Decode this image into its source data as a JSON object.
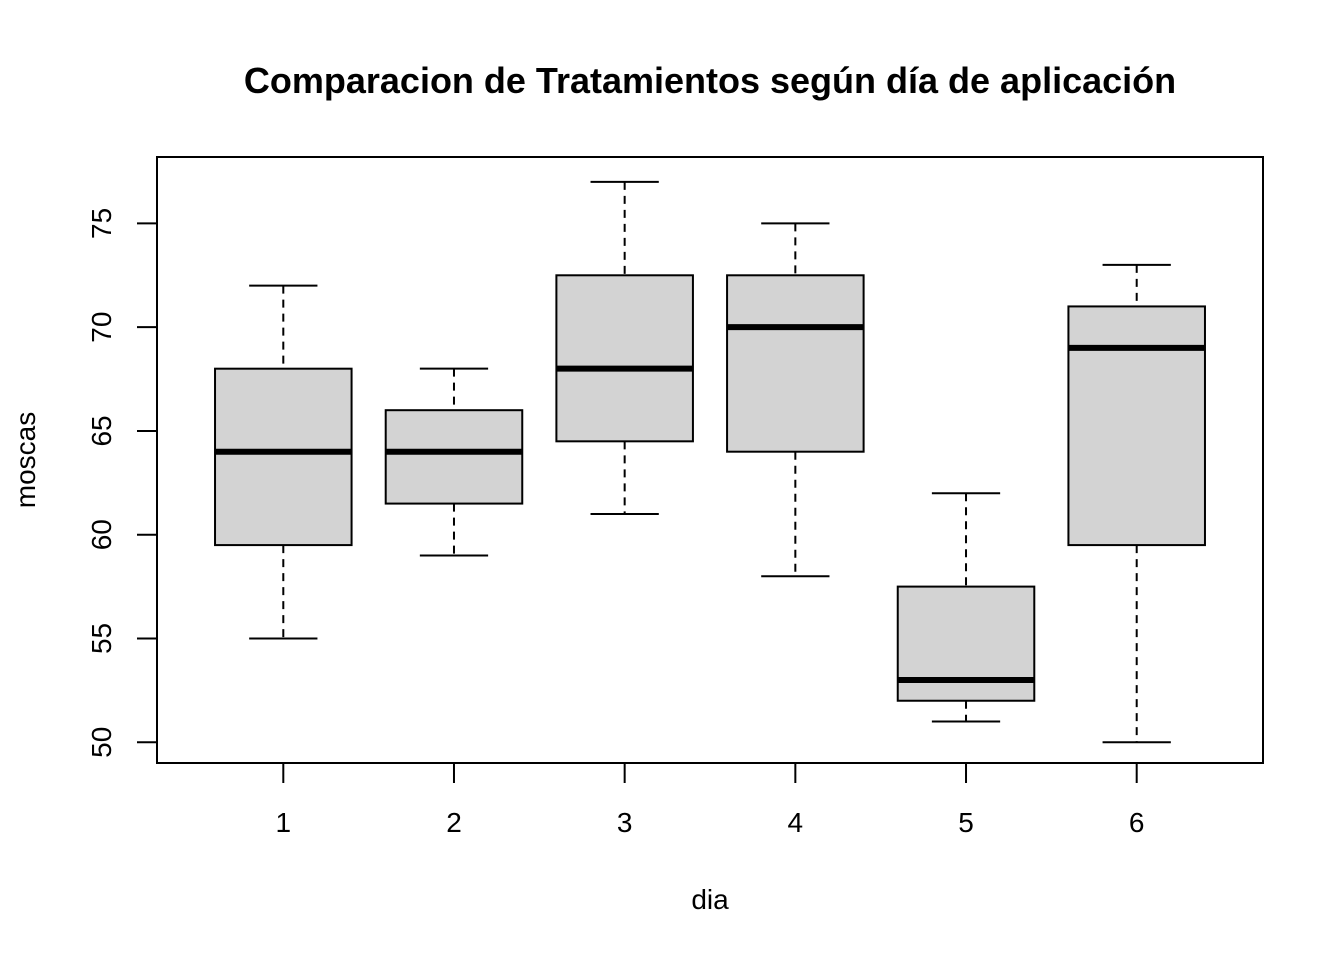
{
  "chart_data": {
    "type": "boxplot",
    "title": "Comparacion de Tratamientos según día de aplicación",
    "xlabel": "dia",
    "ylabel": "moscas",
    "categories": [
      "1",
      "2",
      "3",
      "4",
      "5",
      "6"
    ],
    "ylim": [
      49,
      78.2
    ],
    "yticks": [
      "50",
      "55",
      "60",
      "65",
      "70",
      "75"
    ],
    "box_color": "#d3d3d3",
    "boxes": [
      {
        "category": "1",
        "min": 55,
        "q1": 59.5,
        "median": 64,
        "q3": 68,
        "max": 72
      },
      {
        "category": "2",
        "min": 59,
        "q1": 61.5,
        "median": 64,
        "q3": 66,
        "max": 68
      },
      {
        "category": "3",
        "min": 61,
        "q1": 64.5,
        "median": 68,
        "q3": 72.5,
        "max": 77
      },
      {
        "category": "4",
        "min": 58,
        "q1": 64,
        "median": 70,
        "q3": 72.5,
        "max": 75
      },
      {
        "category": "5",
        "min": 51,
        "q1": 52,
        "median": 53,
        "q3": 57.5,
        "max": 62
      },
      {
        "category": "6",
        "min": 50,
        "q1": 59.5,
        "median": 69,
        "q3": 71,
        "max": 73
      }
    ]
  }
}
